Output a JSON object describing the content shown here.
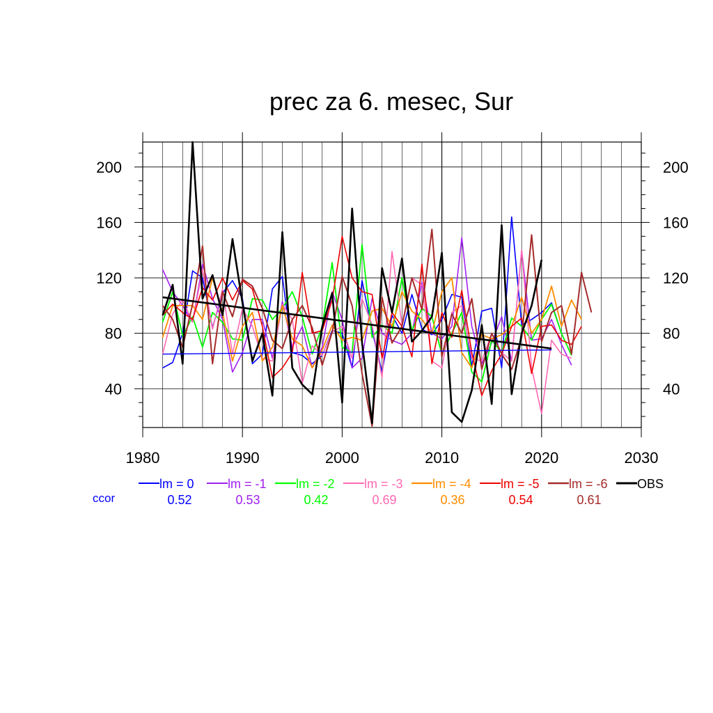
{
  "chart_data": {
    "type": "line",
    "title": "prec za 6. mesec, Sur",
    "xlim": [
      1980,
      2030
    ],
    "ylim": [
      12,
      218
    ],
    "x_ticks": [
      "1980",
      "1990",
      "2000",
      "2010",
      "2020",
      "2030"
    ],
    "y_ticks": [
      "40",
      "80",
      "120",
      "160",
      "200"
    ],
    "y_tick_values": [
      40,
      80,
      120,
      160,
      200
    ],
    "x_tick_values": [
      1980,
      1990,
      2000,
      2010,
      2020,
      2030
    ],
    "grid": true,
    "ccor_label": "ccor",
    "ccor_color": "#0000ff",
    "x_start": 1982,
    "series": [
      {
        "name": "lm = 0",
        "color": "#0000ff",
        "ccor": "0.52",
        "width": 1.6,
        "values": [
          55,
          59,
          80,
          125,
          120,
          84,
          109,
          118,
          105,
          58,
          65,
          112,
          121,
          66,
          64,
          58,
          64,
          82,
          80,
          55,
          118,
          82,
          52,
          93,
          80,
          108,
          83,
          79,
          90,
          108,
          106,
          56,
          96,
          98,
          55,
          164,
          86,
          90,
          95,
          102,
          80
        ]
      },
      {
        "name": "lm = -1",
        "color": "#a020f0",
        "ccor": "0.53",
        "width": 1.6,
        "values": [
          126,
          110,
          100,
          88,
          130,
          105,
          90,
          52,
          66,
          90,
          90,
          62,
          103,
          70,
          85,
          55,
          70,
          110,
          90,
          55,
          62,
          105,
          80,
          75,
          72,
          80,
          117,
          80,
          76,
          85,
          149,
          85,
          58,
          73,
          92,
          60,
          140,
          75,
          76,
          90,
          72,
          57
        ]
      },
      {
        "name": "lm = -2",
        "color": "#00ff00",
        "ccor": "0.42",
        "width": 1.8,
        "values": [
          88,
          110,
          78,
          92,
          70,
          95,
          88,
          76,
          75,
          105,
          104,
          90,
          98,
          110,
          92,
          65,
          85,
          131,
          70,
          66,
          144,
          77,
          86,
          80,
          120,
          82,
          98,
          92,
          65,
          80,
          95,
          52,
          45,
          75,
          66,
          91,
          85,
          75,
          90,
          101,
          80,
          64
        ]
      },
      {
        "name": "lm = -3",
        "color": "#ff69b4",
        "ccor": "0.69",
        "width": 1.6,
        "values": [
          65,
          94,
          104,
          88,
          126,
          83,
          112,
          65,
          98,
          85,
          62,
          60,
          101,
          90,
          44,
          71,
          64,
          81,
          85,
          62,
          105,
          86,
          48,
          139,
          86,
          120,
          115,
          60,
          55,
          95,
          100,
          62,
          60,
          80,
          66,
          60,
          140,
          55,
          22,
          75,
          65,
          62
        ]
      },
      {
        "name": "lm = -4",
        "color": "#ff8c00",
        "ccor": "0.36",
        "width": 1.8,
        "values": [
          77,
          100,
          100,
          100,
          90,
          120,
          95,
          60,
          85,
          95,
          60,
          70,
          100,
          76,
          71,
          55,
          68,
          86,
          75,
          77,
          75,
          96,
          98,
          85,
          110,
          96,
          90,
          80,
          110,
          120,
          66,
          55,
          79,
          76,
          79,
          85,
          106,
          80,
          90,
          114,
          85,
          104,
          90
        ]
      },
      {
        "name": "lm = -5",
        "color": "#ee0000",
        "ccor": "0.54",
        "width": 1.6,
        "values": [
          93,
          101,
          95,
          90,
          113,
          104,
          120,
          104,
          118,
          112,
          85,
          48,
          55,
          66,
          124,
          80,
          82,
          104,
          150,
          120,
          110,
          108,
          62,
          95,
          85,
          63,
          130,
          58,
          95,
          77,
          111,
          66,
          35,
          53,
          65,
          85,
          91,
          51,
          85,
          86,
          75,
          72,
          85
        ]
      },
      {
        "name": "lm = -6",
        "color": "#a52a2a",
        "ccor": "0.61",
        "width": 2.0,
        "values": [
          100,
          90,
          70,
          101,
          143,
          58,
          110,
          92,
          119,
          114,
          98,
          75,
          69,
          90,
          100,
          84,
          57,
          81,
          121,
          100,
          51,
          13,
          106,
          73,
          85,
          120,
          97,
          155,
          63,
          94,
          80,
          105,
          54,
          80,
          65,
          54,
          77,
          151,
          74,
          95,
          100,
          65,
          124,
          95
        ]
      },
      {
        "name": "OBS",
        "color": "#000000",
        "ccor": "",
        "width": 2.6,
        "values": [
          93,
          115,
          58,
          218,
          105,
          122,
          93,
          148,
          102,
          60,
          80,
          35,
          153,
          55,
          43,
          36,
          85,
          109,
          30,
          170,
          73,
          15,
          127,
          95,
          134,
          74,
          82,
          92,
          138,
          23,
          16,
          39,
          86,
          29,
          158,
          36,
          80,
          100,
          133
        ]
      }
    ],
    "trend_lines": [
      {
        "color": "#0000ff",
        "x": [
          1982,
          2021
        ],
        "y": [
          65,
          68
        ]
      },
      {
        "color": "#000000",
        "x": [
          1982,
          2021
        ],
        "y": [
          106,
          69
        ]
      }
    ]
  }
}
